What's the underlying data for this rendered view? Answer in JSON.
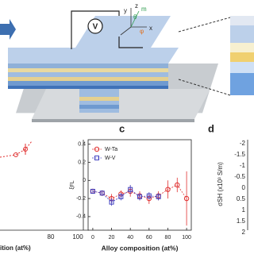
{
  "chart_data": {
    "type": "line",
    "panel_label": "c",
    "ylabel": "ξFL",
    "xlabel": "Alloy composition (at%)",
    "series": [
      {
        "name": "W-Ta",
        "color": "#e03030",
        "marker": "circle",
        "x": [
          0,
          10,
          20,
          30,
          40,
          50,
          60,
          70,
          80,
          90,
          100
        ],
        "values": [
          -0.12,
          -0.14,
          -0.2,
          -0.15,
          -0.12,
          -0.17,
          -0.2,
          -0.17,
          -0.1,
          -0.05,
          -0.2
        ],
        "errors": [
          0.02,
          0.03,
          0.05,
          0.04,
          0.06,
          0.05,
          0.06,
          0.05,
          0.1,
          0.08,
          0.3
        ]
      },
      {
        "name": "W-V",
        "color": "#4040c0",
        "marker": "square",
        "x": [
          0,
          10,
          20,
          30,
          40,
          50,
          60,
          70
        ],
        "values": [
          -0.12,
          -0.14,
          -0.24,
          -0.18,
          -0.1,
          -0.18,
          -0.17,
          -0.18
        ],
        "errors": [
          0.02,
          0.03,
          0.04,
          0.04,
          0.05,
          0.04,
          0.04,
          0.04
        ]
      }
    ],
    "xlim": [
      -5,
      105
    ],
    "xticks": [
      0,
      20,
      40,
      60,
      80,
      100
    ],
    "ylim": [
      -0.55,
      0.45
    ],
    "yticks": [
      0.4,
      0.2,
      0,
      -0.2,
      -0.4
    ]
  },
  "schematic": {
    "meter": "V",
    "axes": {
      "x": "x",
      "y": "y",
      "z": "z",
      "m": "m",
      "theta": "θ",
      "phi": "φ"
    }
  },
  "panel_a": {
    "xlabel": "ition (at%)",
    "xticks": [
      "80",
      "100"
    ]
  },
  "panel_d": {
    "label": "d",
    "ylabel": "σSH (x10³ S/m)",
    "yticks": [
      "-2",
      "-1.5",
      "-1",
      "-0.5",
      "0",
      "0.5",
      "1",
      "1.5",
      "2"
    ]
  }
}
